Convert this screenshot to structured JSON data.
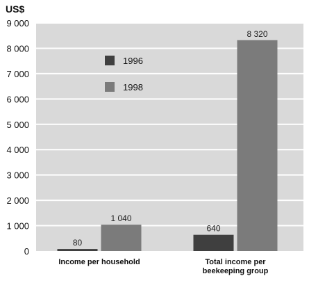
{
  "chart_data": {
    "type": "bar",
    "unit_label": "US$",
    "categories": [
      [
        "Income per household"
      ],
      [
        "Total income per",
        "beekeeping group"
      ]
    ],
    "series": [
      {
        "name": "1996",
        "values": [
          80,
          640
        ],
        "value_labels": [
          "80",
          "640"
        ],
        "color": "#3f3f3f"
      },
      {
        "name": "1998",
        "values": [
          1040,
          8320
        ],
        "value_labels": [
          "1 040",
          "8 320"
        ],
        "color": "#7b7b7b"
      }
    ],
    "ylim": [
      0,
      9000
    ],
    "yticks": [
      0,
      1000,
      2000,
      3000,
      4000,
      5000,
      6000,
      7000,
      8000,
      9000
    ],
    "ytick_labels": [
      "0",
      "1 000",
      "2 000",
      "3 000",
      "4 000",
      "5 000",
      "6 000",
      "7 000",
      "8 000",
      "9 000"
    ],
    "grid": true,
    "legend_position": "top-left inside plot",
    "colors": {
      "plot_background": "#d9d9d9",
      "grid": "#ffffff"
    }
  }
}
